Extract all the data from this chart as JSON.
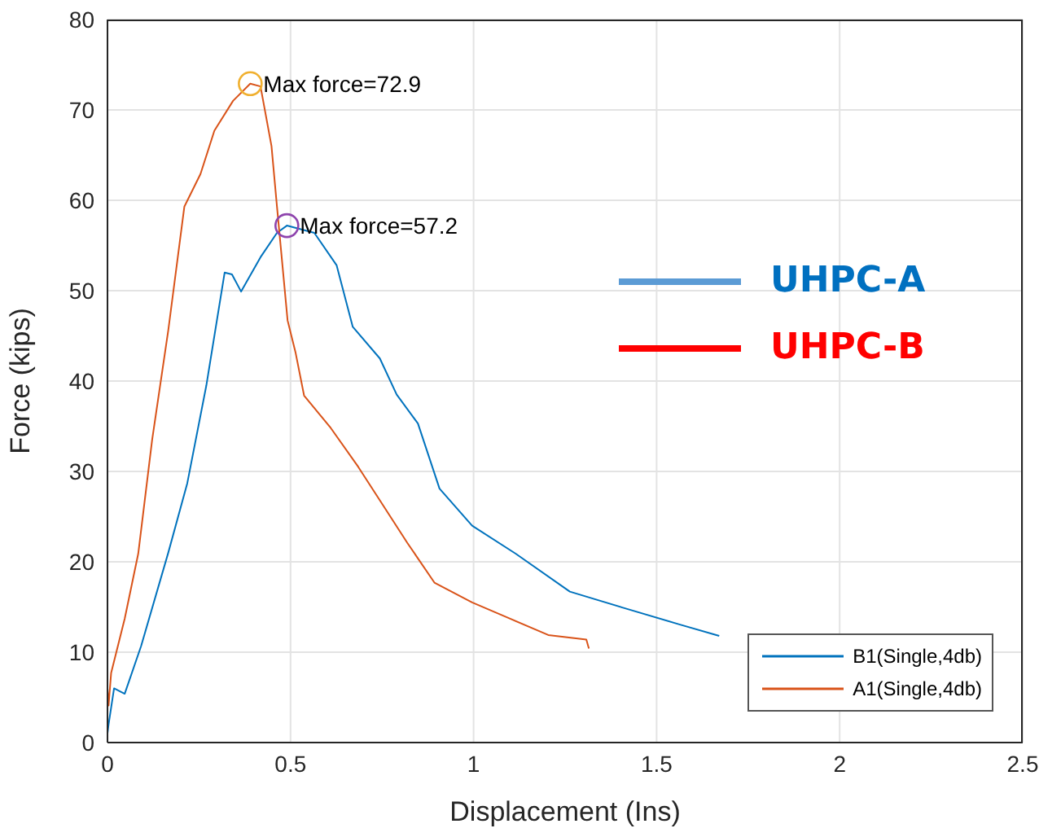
{
  "chart_data": {
    "type": "line",
    "xlabel": "Displacement (Ins)",
    "ylabel": "Force (kips)",
    "xlim": [
      0,
      2.5
    ],
    "xticks": [
      0,
      0.5,
      1,
      1.5,
      2,
      2.5
    ],
    "ylim": [
      0,
      80
    ],
    "yticks": [
      0,
      10,
      20,
      30,
      40,
      50,
      60,
      70,
      80
    ],
    "grid": true,
    "legend": "bottom right",
    "marker": "none",
    "line_style": "solid",
    "annotations": [
      {
        "text": "Max force=72.9",
        "x": 0.39,
        "y": 72.9
      },
      {
        "text": "Max force=57.2",
        "x": 0.49,
        "y": 57.2
      },
      "UHPC-A",
      "UHPC-B"
    ],
    "series": [
      {
        "name": "B1(Single,4db)",
        "color": "#0072bd",
        "x": [
          0,
          0.003,
          0.018,
          0.047,
          0.092,
          0.166,
          0.218,
          0.27,
          0.32,
          0.34,
          0.365,
          0.418,
          0.463,
          0.49,
          0.565,
          0.626,
          0.67,
          0.744,
          0.79,
          0.848,
          0.907,
          0.996,
          1.115,
          1.263,
          1.41,
          1.56,
          1.671
        ],
        "values": [
          1,
          2,
          6,
          5.4,
          10.7,
          21,
          28.7,
          39.5,
          52,
          51.8,
          49.9,
          53.7,
          56.4,
          57.2,
          56.4,
          52.8,
          46,
          42.5,
          38.5,
          35.3,
          28.1,
          24,
          20.9,
          16.7,
          14.9,
          13.1,
          11.8
        ]
      },
      {
        "name": "A1(Single,4db)",
        "color": "#d95319",
        "x": [
          0,
          0.003,
          0.01,
          0.047,
          0.084,
          0.122,
          0.166,
          0.21,
          0.254,
          0.292,
          0.343,
          0.39,
          0.418,
          0.448,
          0.463,
          0.492,
          0.514,
          0.537,
          0.61,
          0.685,
          0.744,
          0.819,
          0.893,
          0.996,
          1.1,
          1.204,
          1.308,
          1.315
        ],
        "values": [
          6,
          4.1,
          7.7,
          13.7,
          20.9,
          33.5,
          45.6,
          59.3,
          62.9,
          67.7,
          71,
          72.9,
          72.6,
          66,
          59.3,
          46.7,
          43.1,
          38.4,
          34.8,
          30.5,
          26.8,
          22.1,
          17.7,
          15.5,
          13.7,
          11.9,
          11.4,
          10.4
        ]
      }
    ]
  }
}
